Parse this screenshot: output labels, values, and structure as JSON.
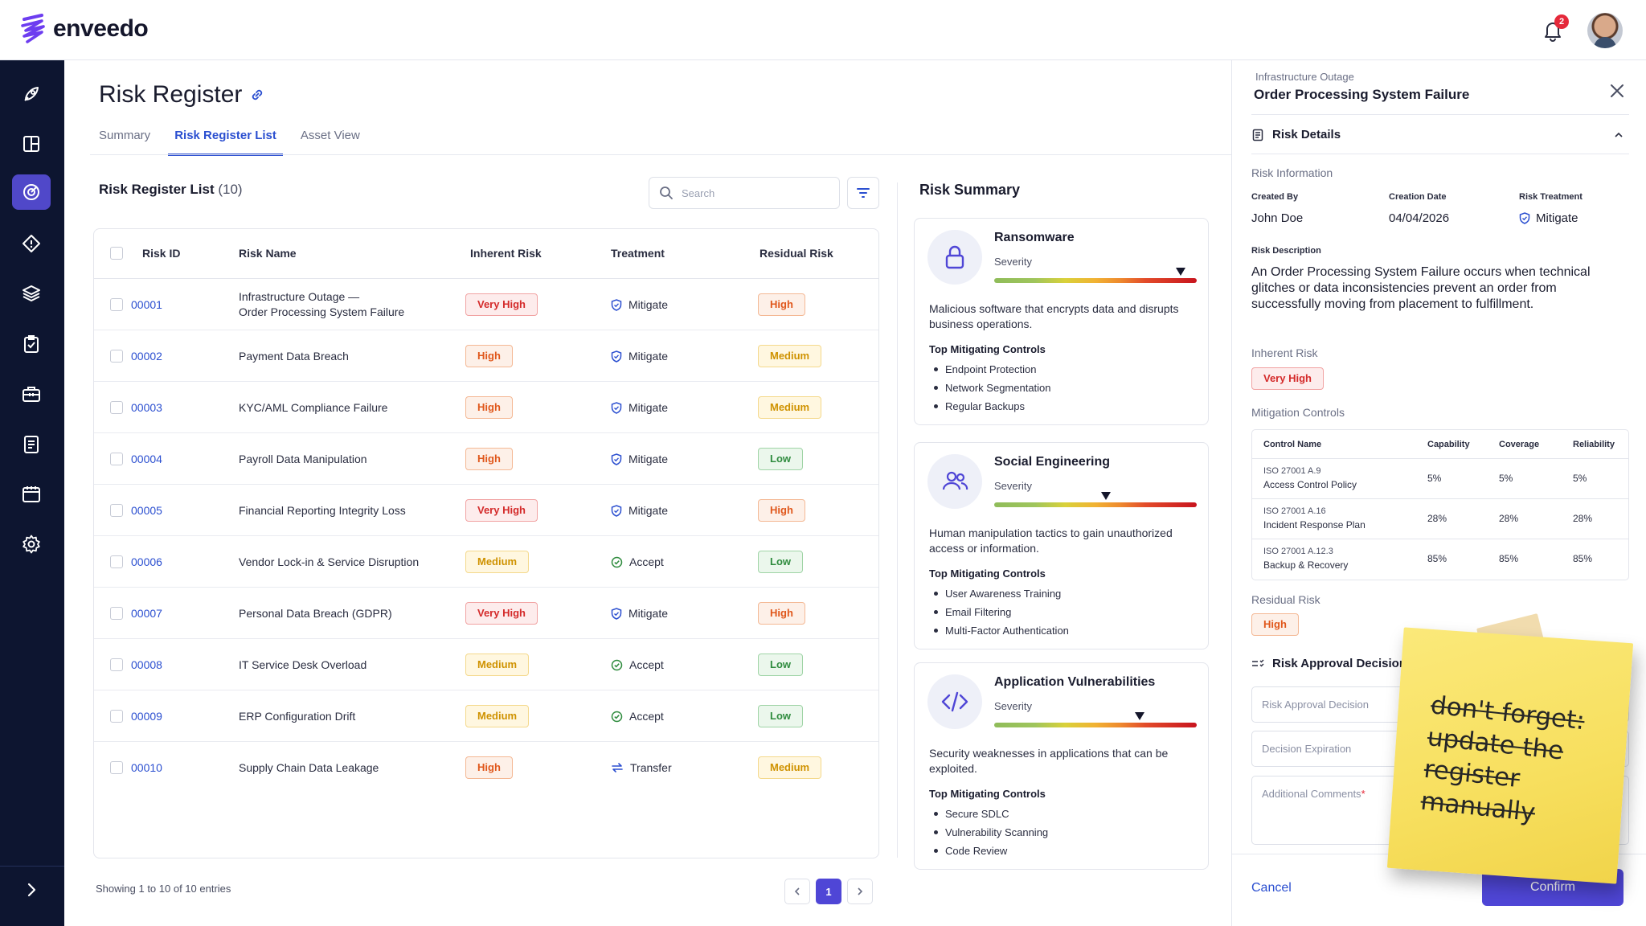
{
  "app": {
    "brand": "enveedo",
    "notifications": "2"
  },
  "nav_icons": [
    "rocket-icon",
    "layout-icon",
    "radar-icon",
    "diamond-icon",
    "layers-icon",
    "clipboard-check-icon",
    "toolbox-icon",
    "document-list-icon",
    "calendar-icon",
    "settings-icon",
    "expand-icon"
  ],
  "page": {
    "title": "Risk Register",
    "tabs": [
      "Summary",
      "Risk Register List",
      "Asset View"
    ],
    "active_tab": "Risk Register List"
  },
  "list": {
    "title": "Risk Register List",
    "count": "(10)",
    "search_placeholder": "Search",
    "columns": {
      "id": "Risk ID",
      "name": "Risk Name",
      "inherent": "Inherent Risk",
      "treatment": "Treatment",
      "residual": "Residual Risk"
    },
    "rows": [
      {
        "id": "00001",
        "name1": "Infrastructure Outage —",
        "name2": "Order Processing System Failure",
        "inherent": "Very High",
        "ik": "vh",
        "treatment": "Mitigate",
        "tk": "shield",
        "residual": "High",
        "rk": "h"
      },
      {
        "id": "00002",
        "name1": "Payment Data Breach",
        "name2": "",
        "inherent": "High",
        "ik": "h",
        "treatment": "Mitigate",
        "tk": "shield",
        "residual": "Medium",
        "rk": "m"
      },
      {
        "id": "00003",
        "name1": "KYC/AML Compliance Failure",
        "name2": "",
        "inherent": "High",
        "ik": "h",
        "treatment": "Mitigate",
        "tk": "shield",
        "residual": "Medium",
        "rk": "m"
      },
      {
        "id": "00004",
        "name1": "Payroll Data Manipulation",
        "name2": "",
        "inherent": "High",
        "ik": "h",
        "treatment": "Mitigate",
        "tk": "shield",
        "residual": "Low",
        "rk": "l"
      },
      {
        "id": "00005",
        "name1": "Financial Reporting Integrity Loss",
        "name2": "",
        "inherent": "Very High",
        "ik": "vh",
        "treatment": "Mitigate",
        "tk": "shield",
        "residual": "High",
        "rk": "h"
      },
      {
        "id": "00006",
        "name1": "Vendor Lock-in & Service Disruption",
        "name2": "",
        "inherent": "Medium",
        "ik": "m",
        "treatment": "Accept",
        "tk": "check",
        "residual": "Low",
        "rk": "l"
      },
      {
        "id": "00007",
        "name1": "Personal Data Breach (GDPR)",
        "name2": "",
        "inherent": "Very High",
        "ik": "vh",
        "treatment": "Mitigate",
        "tk": "shield",
        "residual": "High",
        "rk": "h"
      },
      {
        "id": "00008",
        "name1": "IT Service Desk Overload",
        "name2": "",
        "inherent": "Medium",
        "ik": "m",
        "treatment": "Accept",
        "tk": "check",
        "residual": "Low",
        "rk": "l"
      },
      {
        "id": "00009",
        "name1": "ERP Configuration Drift",
        "name2": "",
        "inherent": "Medium",
        "ik": "m",
        "treatment": "Accept",
        "tk": "check",
        "residual": "Low",
        "rk": "l"
      },
      {
        "id": "00010",
        "name1": "Supply Chain Data Leakage",
        "name2": "",
        "inherent": "High",
        "ik": "h",
        "treatment": "Transfer",
        "tk": "transfer",
        "residual": "Medium",
        "rk": "m"
      }
    ],
    "showing": "Showing 1 to 10 of 10 entries",
    "page_current": "1"
  },
  "summary": {
    "title": "Risk Summary",
    "severity_label": "Severity",
    "controls_label": "Top Mitigating Controls",
    "cards": [
      {
        "name": "Ransomware",
        "icon": "lock-icon",
        "severity": 0.92,
        "desc": "Malicious software that encrypts data and disrupts business operations.",
        "controls": [
          "Endpoint Protection",
          "Network Segmentation",
          "Regular Backups"
        ]
      },
      {
        "name": "Social Engineering",
        "icon": "users-icon",
        "severity": 0.55,
        "desc": "Human manipulation tactics to gain unauthorized access or information.",
        "controls": [
          "User Awareness Training",
          "Email Filtering",
          "Multi-Factor Authentication"
        ]
      },
      {
        "name": "Application Vulnerabilities",
        "icon": "code-icon",
        "severity": 0.72,
        "desc": "Security weaknesses in applications that can be exploited.",
        "controls": [
          "Secure SDLC",
          "Vulnerability Scanning",
          "Code Review"
        ]
      }
    ]
  },
  "panel": {
    "subtitle": "Infrastructure Outage",
    "title": "Order Processing System Failure",
    "risk_details": "Risk Details",
    "risk_information": "Risk Information",
    "created_by_label": "Created By",
    "created_by": "John Doe",
    "creation_date_label": "Creation Date",
    "creation_date": "04/04/2026",
    "treatment_label": "Risk Treatment",
    "treatment": "Mitigate",
    "description_label": "Risk Description",
    "description": "An Order Processing System Failure occurs when technical glitches or data inconsistencies prevent an order from successfully moving from placement to fulfillment.",
    "inherent_label": "Inherent Risk",
    "inherent": "Very High",
    "mitigation_label": "Mitigation Controls",
    "mc_columns": [
      "Control Name",
      "Capability",
      "Coverage",
      "Reliability"
    ],
    "mc_rows": [
      {
        "code": "ISO 27001 A.9",
        "name": "Access Control Policy",
        "cap": "5%",
        "cov": "5%",
        "rel": "5%"
      },
      {
        "code": "ISO 27001 A.16",
        "name": "Incident Response Plan",
        "cap": "28%",
        "cov": "28%",
        "rel": "28%"
      },
      {
        "code": "ISO 27001 A.12.3",
        "name": "Backup & Recovery",
        "cap": "85%",
        "cov": "85%",
        "rel": "85%"
      }
    ],
    "residual_label": "Residual Risk",
    "residual": "High",
    "approval_label": "Risk Approval Decision",
    "approval_field": "Risk Approval Decision",
    "expiration_field": "Decision Expiration",
    "comments_field": "Additional Comments",
    "cancel": "Cancel",
    "confirm": "Confirm"
  },
  "sticky_note": {
    "text": "don't forget: update the register manually"
  },
  "colors": {
    "accent": "#4f46d6",
    "nav_bg": "#0d1530",
    "link": "#2b4fd0"
  }
}
